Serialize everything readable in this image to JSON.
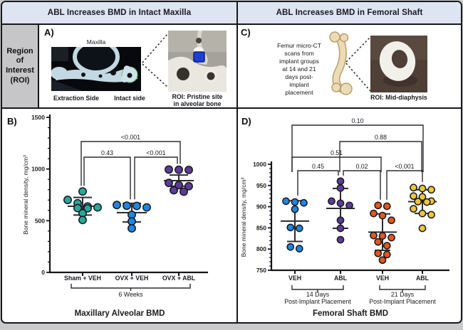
{
  "header": {
    "left": "ABL Increases BMD in Intact Maxilla",
    "right": "ABL Increases BMD in Femoral Shaft"
  },
  "sidebar": {
    "roi_label": "Region of Interest (ROI)"
  },
  "panel_a": {
    "label": "A)",
    "top_caption": "Maxilla",
    "bottom_left_caption": "Extraction Side",
    "bottom_right_caption": "Intact side",
    "roi_caption": "ROI: Pristine site\nin alveolar bone"
  },
  "panel_c": {
    "label": "C)",
    "description": "Femur micro-CT\nscans from\nimplant groups\nat 14 and 21\ndays post-\nimplant\nplacement",
    "roi_caption": "ROI: Mid-diaphysis"
  },
  "colors": {
    "header_bg": "#dde4f2",
    "sidebar_bg": "#c6c6c8",
    "sham_veh": "#2ba69a",
    "ovx_veh_blue": "#1f86e0",
    "ovx_abl_purple": "#5c3c97",
    "veh_21d_orange": "#e3571e",
    "abl_21d_yellow": "#edc63b"
  },
  "chart_data": [
    {
      "id": "B",
      "panel_label": "B)",
      "type": "scatter",
      "title": "Maxillary Alveolar BMD",
      "ylabel": "Bone mineral density, mg/cm³",
      "ylim": [
        0,
        1500
      ],
      "yticks": [
        0,
        500,
        1000,
        1500
      ],
      "minor_step": 100,
      "categories": [
        "Sham + VEH",
        "OVX + VEH",
        "OVX + ABL"
      ],
      "series": [
        {
          "name": "Sham + VEH",
          "color": "#2ba69a",
          "values": [
            783,
            701,
            669,
            638,
            629,
            622,
            620,
            572,
            507
          ],
          "mean": 640,
          "sd": 85
        },
        {
          "name": "OVX + VEH",
          "color": "#1f86e0",
          "values": [
            652,
            645,
            643,
            629,
            557,
            493,
            426
          ],
          "mean": 578,
          "sd": 90
        },
        {
          "name": "OVX + ABL",
          "color": "#5c3c97",
          "values": [
            995,
            993,
            991,
            866,
            844,
            834,
            795,
            781
          ],
          "mean": 888,
          "sd": 54
        }
      ],
      "comparisons": [
        {
          "from": 0,
          "to": 2,
          "label": "<0.001"
        },
        {
          "from": 0,
          "to": 1,
          "label": "0.43"
        },
        {
          "from": 1,
          "to": 2,
          "label": "<0.001"
        }
      ],
      "x_brackets": [
        {
          "from": 0,
          "to": 2,
          "label": "6 Weeks"
        }
      ]
    },
    {
      "id": "D",
      "panel_label": "D)",
      "type": "scatter",
      "title": "Femoral Shaft BMD",
      "ylabel": "Bone mineral density, mg/cm³",
      "ylim": [
        750,
        1000
      ],
      "yticks": [
        750,
        800,
        850,
        900,
        950,
        1000
      ],
      "minor_step": 10,
      "categories": [
        "VEH",
        "ABL",
        "VEH",
        "ABL"
      ],
      "series": [
        {
          "name": "VEH 14 days",
          "color": "#1f86e0",
          "values": [
            913,
            911,
            909,
            894,
            851,
            849,
            805,
            801
          ],
          "mean": 866,
          "sd": 48
        },
        {
          "name": "ABL 14 days",
          "color": "#5c3c97",
          "values": [
            960,
            944,
            913,
            908,
            903,
            868,
            849,
            822
          ],
          "mean": 896,
          "sd": 47
        },
        {
          "name": "VEH 21 days",
          "color": "#e3571e",
          "values": [
            903,
            901,
            884,
            879,
            868,
            832,
            831,
            827,
            817,
            808,
            790,
            787,
            774
          ],
          "mean": 840,
          "sd": 43
        },
        {
          "name": "ABL 21 days",
          "color": "#edc63b",
          "values": [
            945,
            943,
            940,
            925,
            923,
            913,
            912,
            911,
            895,
            884,
            881,
            849
          ],
          "mean": 912,
          "sd": 28
        }
      ],
      "comparisons": [
        {
          "from": 0,
          "to": 3,
          "label": "0.10"
        },
        {
          "from": 1,
          "to": 3,
          "label": "0.88"
        },
        {
          "from": 0,
          "to": 2,
          "label": "0.51"
        },
        {
          "from": 0,
          "to": 1,
          "label": "0.45"
        },
        {
          "from": 1,
          "to": 2,
          "label": "0.02"
        },
        {
          "from": 2,
          "to": 3,
          "label": "<0.001"
        }
      ],
      "x_brackets": [
        {
          "from": 0,
          "to": 1,
          "label": "14 Days\nPost-Implant Placement"
        },
        {
          "from": 2,
          "to": 3,
          "label": "21 Days\nPost-Implant Placement"
        }
      ]
    }
  ]
}
